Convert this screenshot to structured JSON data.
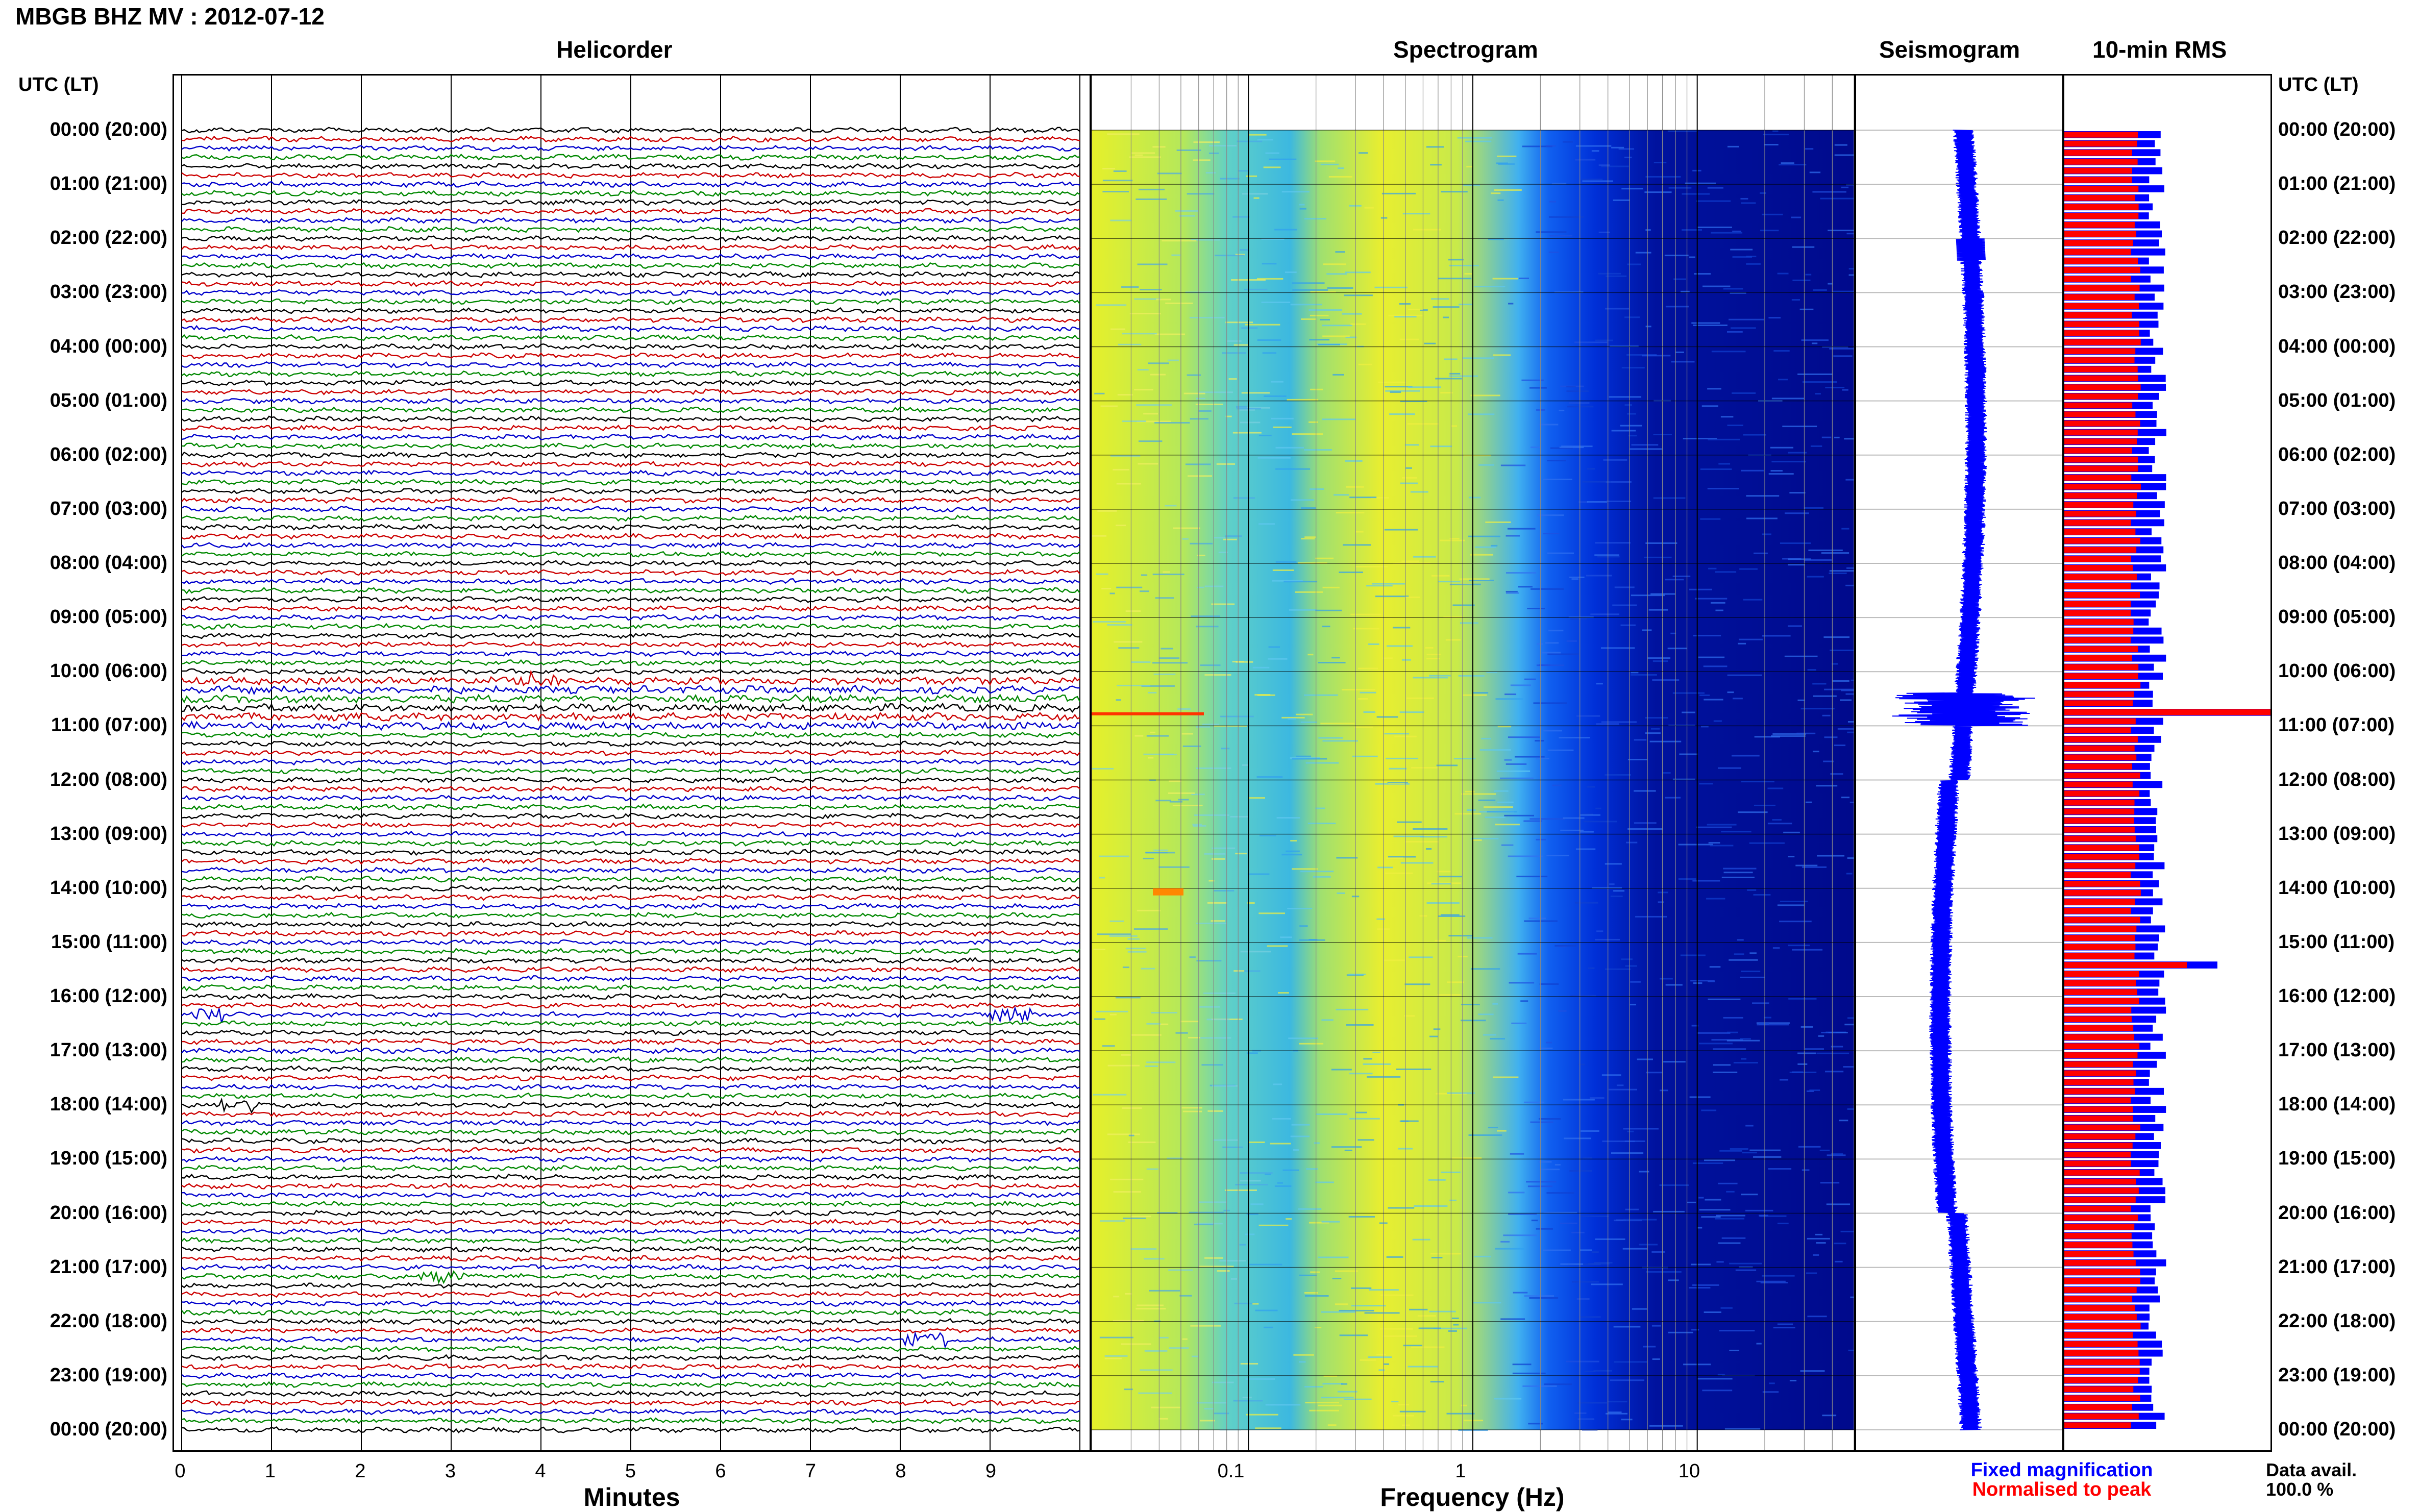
{
  "header": {
    "station_title": "MBGB BHZ MV : 2012-07-12"
  },
  "panels": {
    "helicorder": "Helicorder",
    "spectrogram": "Spectrogram",
    "seismogram": "Seismogram",
    "rms": "10-min RMS"
  },
  "axis": {
    "utc_label_left": "UTC (LT)",
    "utc_label_right": "UTC (LT)",
    "minutes_label": "Minutes",
    "frequency_label": "Frequency (Hz)"
  },
  "time_labels": [
    "00:00 (20:00)",
    "01:00 (21:00)",
    "02:00 (22:00)",
    "03:00 (23:00)",
    "04:00 (00:00)",
    "05:00 (01:00)",
    "06:00 (02:00)",
    "07:00 (03:00)",
    "08:00 (04:00)",
    "09:00 (05:00)",
    "10:00 (06:00)",
    "11:00 (07:00)",
    "12:00 (08:00)",
    "13:00 (09:00)",
    "14:00 (10:00)",
    "15:00 (11:00)",
    "16:00 (12:00)",
    "17:00 (13:00)",
    "18:00 (14:00)",
    "19:00 (15:00)",
    "20:00 (16:00)",
    "21:00 (17:00)",
    "22:00 (18:00)",
    "23:00 (19:00)",
    "00:00 (20:00)"
  ],
  "minute_ticks": [
    "0",
    "1",
    "2",
    "3",
    "4",
    "5",
    "6",
    "7",
    "8",
    "9"
  ],
  "frequency_ticks": [
    "0.1",
    "1",
    "10"
  ],
  "legend": {
    "fixed": "Fixed magnification",
    "normalised": "Normalised to peak",
    "fixed_color": "#0000ff",
    "normalised_color": "#ff0000"
  },
  "data_availability": {
    "label": "Data avail.",
    "value": "100.0 %"
  },
  "colors": {
    "trace_cycle": [
      "#000000",
      "#cc0000",
      "#0000cc",
      "#008800"
    ],
    "spectrogram_low": "#ffff00",
    "spectrogram_high": "#00008b"
  },
  "chart_data": [
    {
      "type": "line",
      "title": "Helicorder",
      "xlabel": "Minutes",
      "xlim": [
        0,
        10
      ],
      "rows_per_hour": 6,
      "events_minutes": [
        {
          "hour_row": 10.2,
          "minute": 4.0
        },
        {
          "hour_row": 16.3,
          "minute": 0.2
        },
        {
          "hour_row": 16.3,
          "minute": 9.2
        },
        {
          "hour_row": 18.0,
          "minute": 0.6
        },
        {
          "hour_row": 21.2,
          "minute": 2.9
        },
        {
          "hour_row": 22.3,
          "minute": 8.3
        }
      ]
    },
    {
      "type": "heatmap",
      "title": "Spectrogram",
      "xlabel": "Frequency (Hz)",
      "x_scale": "log",
      "xlim": [
        0.02,
        50
      ],
      "ylim_hours": [
        0,
        24
      ]
    },
    {
      "type": "line",
      "title": "Seismogram",
      "ylim_hours": [
        0,
        24
      ]
    },
    {
      "type": "bar",
      "title": "10-min RMS",
      "ylim_hours": [
        0,
        24
      ],
      "series": [
        {
          "name": "Fixed magnification",
          "color": "#0000ff"
        },
        {
          "name": "Normalised to peak",
          "color": "#ff0000"
        }
      ],
      "peaks_hours": [
        10.6,
        15.4
      ]
    }
  ]
}
